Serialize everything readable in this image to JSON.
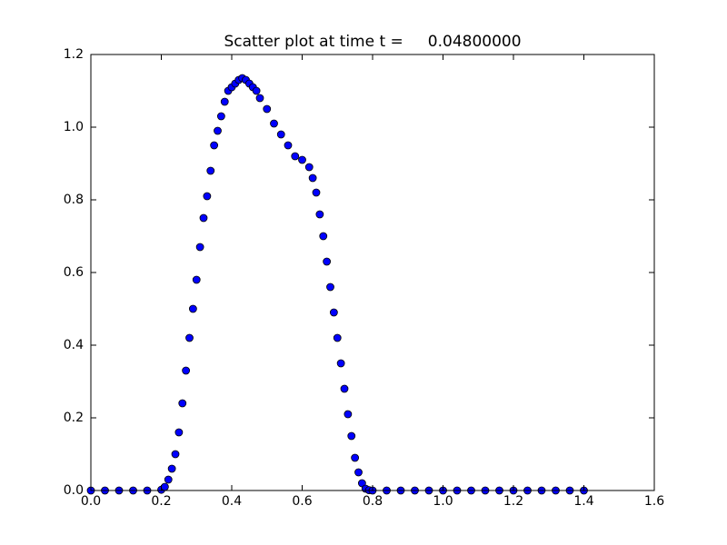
{
  "chart_data": {
    "type": "scatter",
    "title": "Scatter plot at time t =     0.04800000",
    "x": [
      0,
      0.04,
      0.08,
      0.12,
      0.16,
      0.2,
      0.21,
      0.22,
      0.23,
      0.24,
      0.25,
      0.26,
      0.27,
      0.28,
      0.29,
      0.3,
      0.31,
      0.32,
      0.33,
      0.34,
      0.35,
      0.36,
      0.37,
      0.38,
      0.39,
      0.4,
      0.41,
      0.42,
      0.43,
      0.44,
      0.45,
      0.46,
      0.47,
      0.48,
      0.5,
      0.52,
      0.54,
      0.56,
      0.58,
      0.6,
      0.62,
      0.63,
      0.64,
      0.65,
      0.66,
      0.67,
      0.68,
      0.69,
      0.7,
      0.71,
      0.72,
      0.73,
      0.74,
      0.75,
      0.76,
      0.77,
      0.78,
      0.79,
      0.8,
      0.84,
      0.88,
      0.92,
      0.96,
      1.0,
      1.04,
      1.08,
      1.12,
      1.16,
      1.2,
      1.24,
      1.28,
      1.32,
      1.36,
      1.4
    ],
    "values": [
      0,
      0,
      0,
      0,
      0,
      0.002,
      0.01,
      0.03,
      0.06,
      0.1,
      0.16,
      0.24,
      0.33,
      0.42,
      0.5,
      0.58,
      0.67,
      0.75,
      0.81,
      0.88,
      0.95,
      0.99,
      1.03,
      1.07,
      1.1,
      1.11,
      1.12,
      1.13,
      1.135,
      1.13,
      1.12,
      1.11,
      1.1,
      1.08,
      1.05,
      1.01,
      0.98,
      0.95,
      0.92,
      0.91,
      0.89,
      0.86,
      0.82,
      0.76,
      0.7,
      0.63,
      0.56,
      0.49,
      0.42,
      0.35,
      0.28,
      0.21,
      0.15,
      0.09,
      0.05,
      0.02,
      0.005,
      0.001,
      0,
      0,
      0,
      0,
      0,
      0,
      0,
      0,
      0,
      0,
      0,
      0,
      0,
      0,
      0,
      0
    ],
    "color": "#0000ff",
    "edgecolor": "#000000",
    "xlim": [
      0,
      1.6
    ],
    "xticks": [
      {
        "value": 0,
        "label": "0.0"
      },
      0.2,
      0.4,
      0.6,
      0.8,
      {
        "value": 1,
        "label": "1.0"
      },
      1.2,
      1.4,
      1.6
    ],
    "ylim": [
      0,
      1.2
    ],
    "yticks": [
      {
        "value": 0,
        "label": "0.0"
      },
      0.2,
      0.4,
      0.6,
      0.8,
      {
        "value": 1,
        "label": "1.0"
      },
      1.2
    ]
  }
}
